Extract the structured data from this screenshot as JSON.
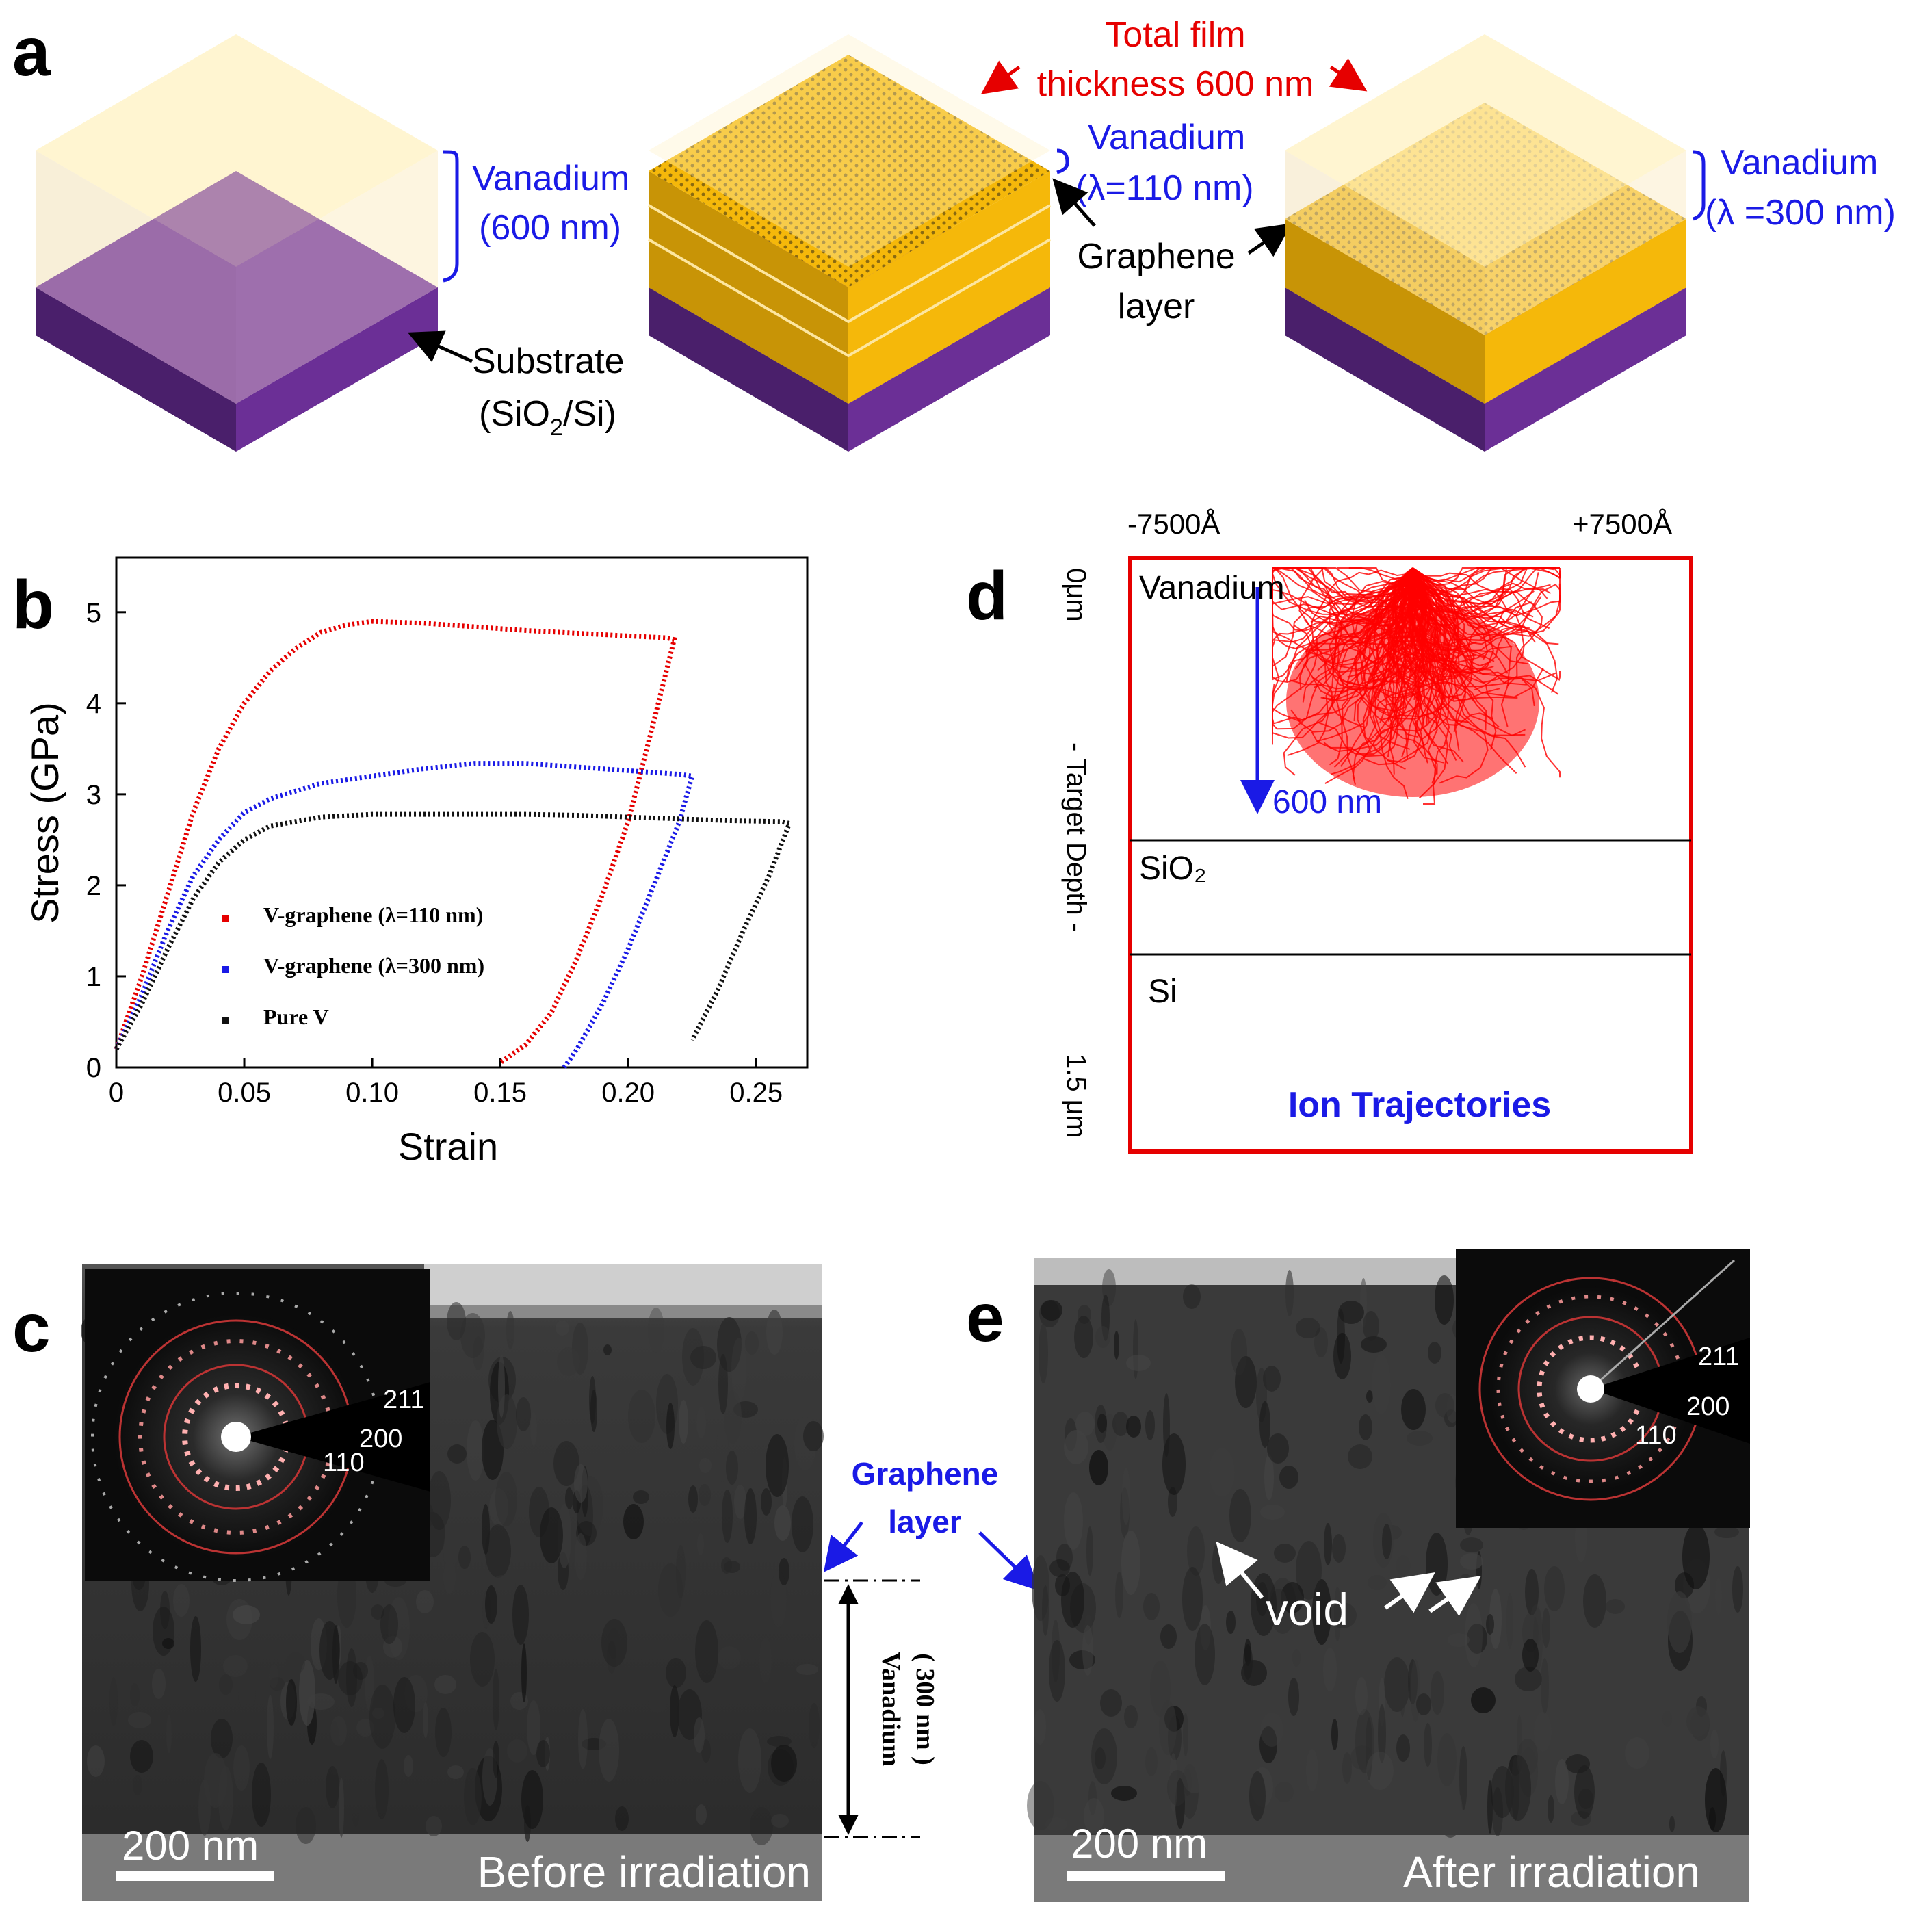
{
  "panels": {
    "a": "a",
    "b": "b",
    "c": "c",
    "d": "d",
    "e": "e"
  },
  "panel_a": {
    "total_line1": "Total film",
    "total_line2": "thickness  600 nm",
    "left_v_line1": "Vanadium",
    "left_v_line2": "(600 nm)",
    "substrate_line1": "Substrate",
    "substrate_sio": "(SiO",
    "substrate_sub": "2",
    "substrate_end": "/Si)",
    "mid_v_line1": "Vanadium",
    "mid_v_line2": "(λ=110 nm)",
    "graphene_line1": "Graphene",
    "graphene_line2": "layer",
    "right_v_line1": "Vanadium",
    "right_v_line2": "(λ =300 nm)"
  },
  "panel_d": {
    "left_range": "-7500Å",
    "right_range": "+7500Å",
    "depth_top": "0μm",
    "depth_mid": "- Target Depth -",
    "depth_bottom": "1.5 μm",
    "layer1": "Vanadium",
    "layer2": "SiO₂",
    "layer3": "Si",
    "depth_label": "600  nm",
    "caption": "Ion Trajectories"
  },
  "panel_c": {
    "scale": "200 nm",
    "caption": "Before irradiation",
    "ring1": "211",
    "ring2": "200",
    "ring3": "110",
    "vanadium_label": "Vanadium",
    "vanadium_thick": "( 300 nm )"
  },
  "panel_e": {
    "scale": "200 nm",
    "caption": "After irradiation",
    "ring1": "211",
    "ring2": "200",
    "ring3": "110",
    "void": "void"
  },
  "graphene_middle_line1": "Graphene",
  "graphene_middle_line2": "layer",
  "colors": {
    "vanadium": "#fff1c2",
    "substrate": "#6b2f96",
    "gold": "#f5b80a",
    "blue": "#1a1ae6",
    "red": "#e60000"
  },
  "chart_data": {
    "type": "line",
    "xlabel": "Strain",
    "ylabel": "Stress (GPa)",
    "xlim": [
      0,
      0.27
    ],
    "ylim": [
      0,
      5.6
    ],
    "xticks": [
      "0",
      "0.05",
      "0.10",
      "0.15",
      "0.20",
      "0.25"
    ],
    "yticks": [
      "0",
      "1",
      "2",
      "3",
      "4",
      "5"
    ],
    "legend_position": "bottom-left",
    "series": [
      {
        "name": "V-graphene (λ=110 nm)",
        "color": "#e60000",
        "x": [
          0,
          0.01,
          0.02,
          0.03,
          0.04,
          0.05,
          0.06,
          0.07,
          0.08,
          0.09,
          0.1,
          0.12,
          0.14,
          0.16,
          0.18,
          0.2,
          0.215,
          0.218,
          0.21,
          0.2,
          0.19,
          0.18,
          0.17,
          0.16,
          0.15
        ],
        "y": [
          0.2,
          1.0,
          1.9,
          2.8,
          3.5,
          4.0,
          4.35,
          4.6,
          4.78,
          4.86,
          4.9,
          4.88,
          4.84,
          4.8,
          4.77,
          4.74,
          4.72,
          4.7,
          3.8,
          2.7,
          1.9,
          1.2,
          0.6,
          0.25,
          0.05
        ]
      },
      {
        "name": "V-graphene (λ=300 nm)",
        "color": "#1a1ae6",
        "x": [
          0,
          0.01,
          0.02,
          0.03,
          0.04,
          0.05,
          0.06,
          0.08,
          0.1,
          0.12,
          0.14,
          0.16,
          0.18,
          0.2,
          0.22,
          0.225,
          0.22,
          0.21,
          0.2,
          0.19,
          0.18,
          0.175
        ],
        "y": [
          0.2,
          0.8,
          1.5,
          2.1,
          2.5,
          2.8,
          2.95,
          3.12,
          3.2,
          3.28,
          3.34,
          3.34,
          3.3,
          3.26,
          3.22,
          3.2,
          2.7,
          2.0,
          1.3,
          0.7,
          0.2,
          0.0
        ]
      },
      {
        "name": "Pure V",
        "color": "#111111",
        "x": [
          0,
          0.01,
          0.02,
          0.03,
          0.04,
          0.05,
          0.06,
          0.08,
          0.1,
          0.12,
          0.14,
          0.16,
          0.18,
          0.2,
          0.22,
          0.24,
          0.26,
          0.263,
          0.255,
          0.245,
          0.235,
          0.225
        ],
        "y": [
          0.2,
          0.7,
          1.3,
          1.85,
          2.25,
          2.5,
          2.65,
          2.75,
          2.78,
          2.78,
          2.78,
          2.78,
          2.77,
          2.75,
          2.73,
          2.71,
          2.7,
          2.68,
          2.1,
          1.5,
          0.85,
          0.3
        ]
      }
    ]
  }
}
